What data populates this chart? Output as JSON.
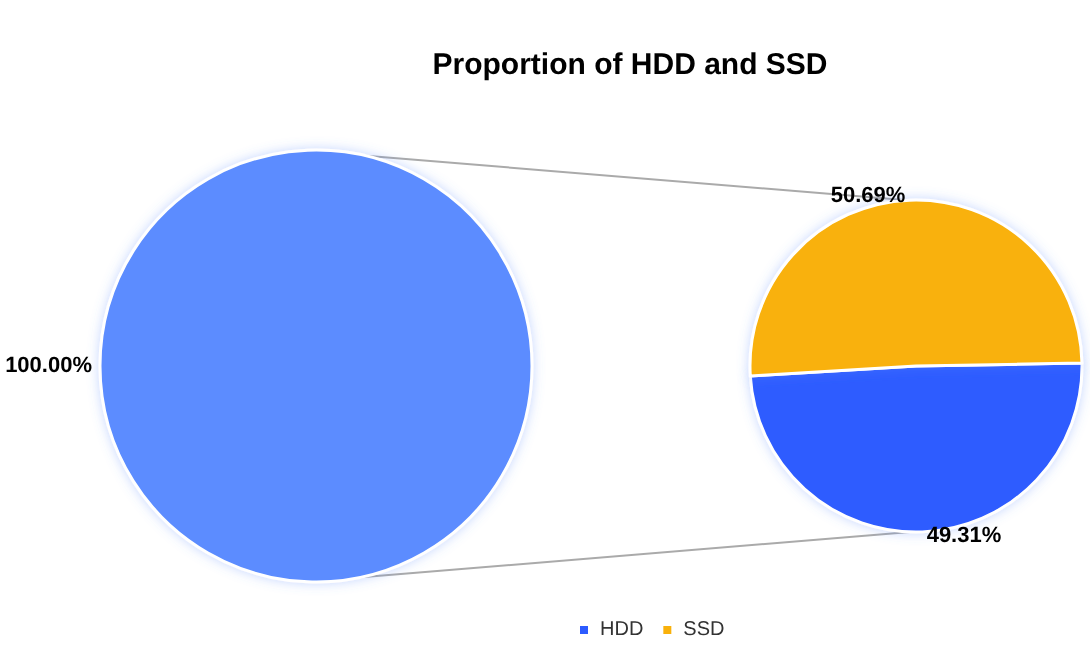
{
  "chart_data": [
    {
      "type": "pie",
      "title": "Proportion of HDD and SSD",
      "categories": [
        null
      ],
      "values": [
        100
      ],
      "colors": [
        "#5b8cff"
      ],
      "value_labels": [
        "100.00%"
      ]
    },
    {
      "type": "pie",
      "categories": [
        "HDD",
        "SSD"
      ],
      "values": [
        49.31,
        50.69
      ],
      "colors": [
        "#2d5bff",
        "#f9b10b"
      ],
      "value_labels": [
        "49.31%",
        "50.69%"
      ],
      "legend": "bottom"
    }
  ]
}
